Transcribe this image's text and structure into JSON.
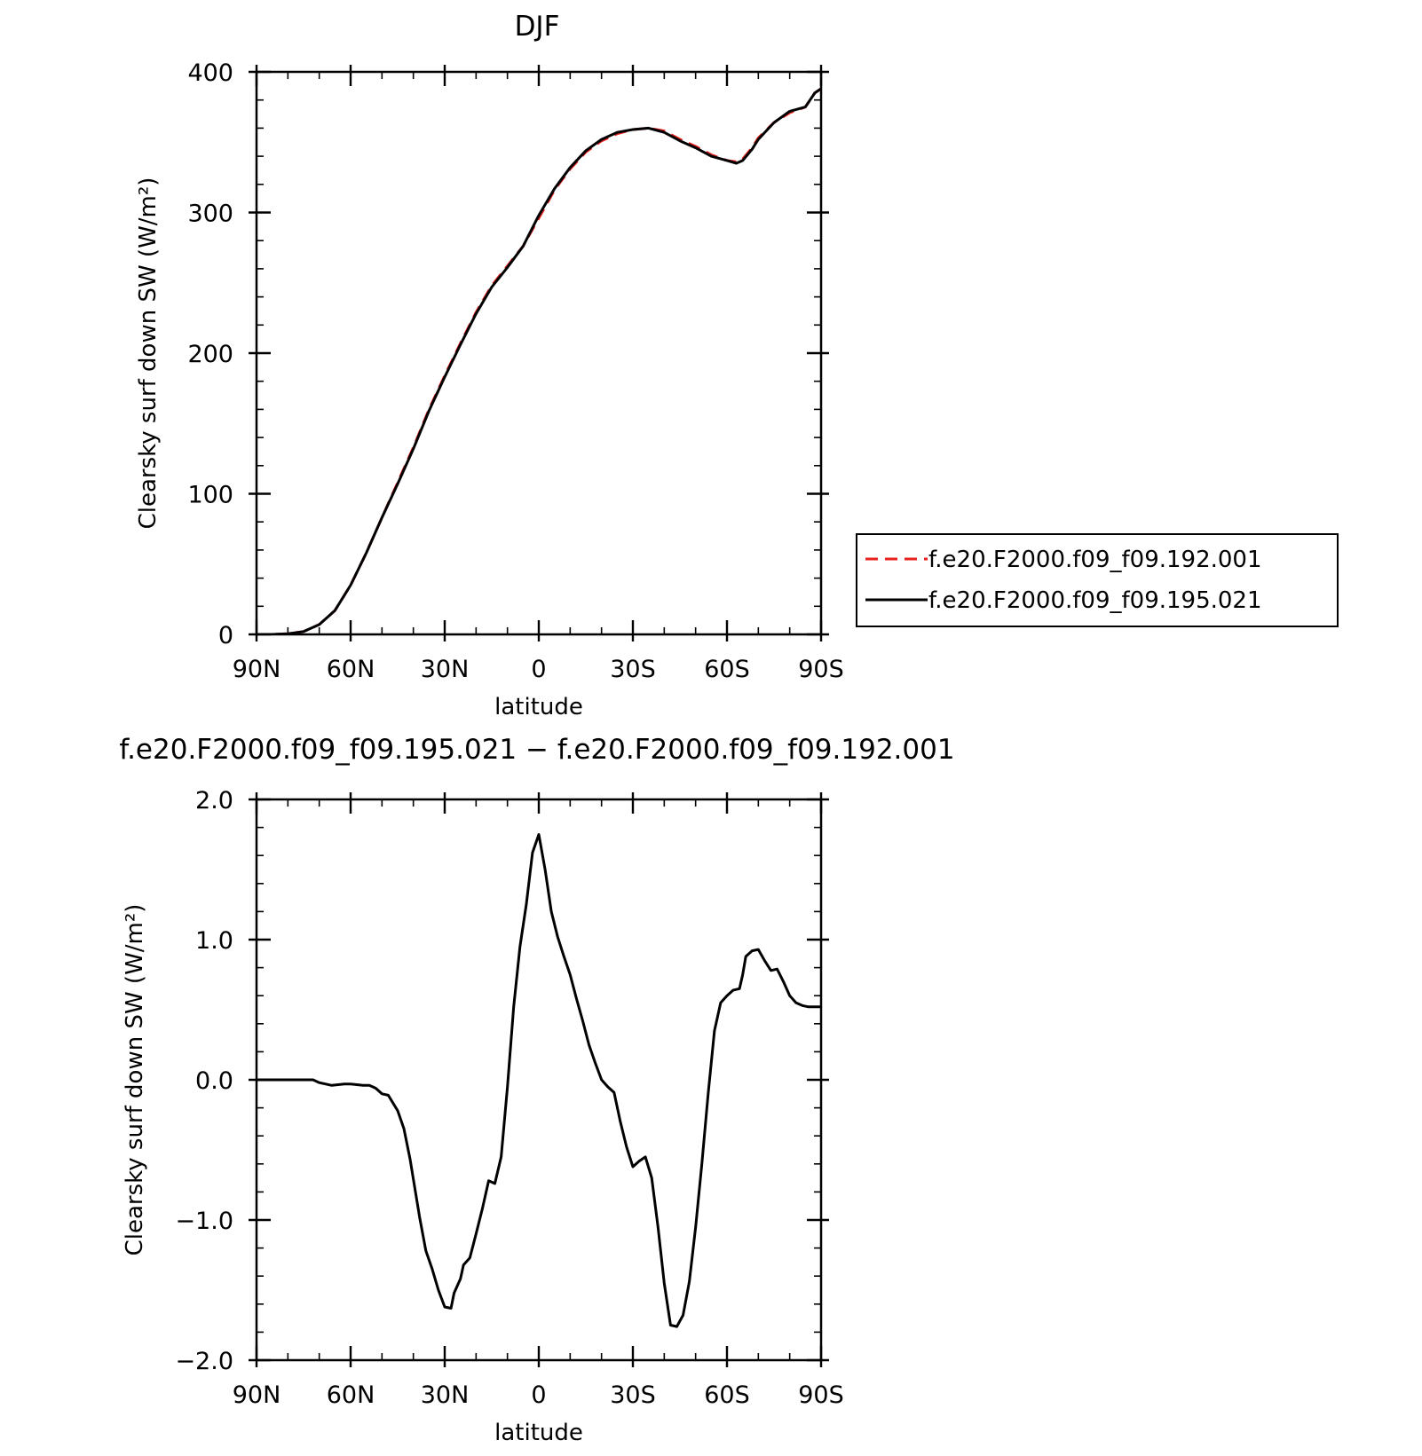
{
  "chart_data": [
    {
      "type": "line",
      "title": "DJF",
      "xlabel": "latitude",
      "ylabel": "Clearsky surf down SW (W/m²)",
      "xlim": [
        90,
        -90
      ],
      "ylim": [
        0,
        400
      ],
      "x_ticks": [
        {
          "value": 90,
          "label": "90N"
        },
        {
          "value": 60,
          "label": "60N"
        },
        {
          "value": 30,
          "label": "30N"
        },
        {
          "value": 0,
          "label": "0"
        },
        {
          "value": -30,
          "label": "30S"
        },
        {
          "value": -60,
          "label": "60S"
        },
        {
          "value": -90,
          "label": "90S"
        }
      ],
      "y_ticks": [
        {
          "value": 0,
          "label": "0"
        },
        {
          "value": 100,
          "label": "100"
        },
        {
          "value": 200,
          "label": "200"
        },
        {
          "value": 300,
          "label": "300"
        },
        {
          "value": 400,
          "label": "400"
        }
      ],
      "legend": "right",
      "series": [
        {
          "name": "f.e20.F2000.f09_f09.192.001",
          "color": "#e8201c",
          "dash": "dashed",
          "x": [
            90,
            85,
            80,
            75,
            70,
            65,
            60,
            55,
            50,
            45,
            40,
            35,
            30,
            25,
            20,
            15,
            10,
            5,
            0,
            -5,
            -10,
            -15,
            -20,
            -25,
            -30,
            -35,
            -40,
            -45,
            -50,
            -55,
            -60,
            -63,
            -65,
            -68,
            -70,
            -75,
            -80,
            -85,
            -88,
            -90
          ],
          "y": [
            0,
            0,
            0.5,
            2,
            7,
            17,
            35,
            58,
            83,
            108,
            133,
            160,
            184,
            207,
            229,
            248,
            262,
            276,
            296,
            316,
            331,
            343,
            351,
            356,
            359,
            360,
            358,
            352,
            347,
            341,
            337,
            336,
            338,
            346,
            353,
            364,
            371,
            375,
            385,
            388
          ]
        },
        {
          "name": "f.e20.F2000.f09_f09.195.021",
          "color": "#000000",
          "dash": "solid",
          "x": [
            90,
            85,
            80,
            75,
            70,
            65,
            60,
            55,
            50,
            45,
            40,
            35,
            30,
            25,
            20,
            15,
            10,
            5,
            0,
            -5,
            -10,
            -15,
            -20,
            -25,
            -30,
            -35,
            -40,
            -45,
            -50,
            -55,
            -60,
            -63,
            -65,
            -68,
            -70,
            -75,
            -80,
            -85,
            -88,
            -90
          ],
          "y": [
            0,
            0,
            0.5,
            2,
            7,
            17,
            35,
            58,
            83,
            107,
            132,
            159,
            183,
            206,
            228,
            247,
            261,
            276,
            298,
            317,
            332,
            344,
            352,
            357,
            359,
            360,
            357,
            351,
            346,
            340,
            337,
            335,
            337,
            345,
            352,
            364,
            372,
            375,
            385,
            388
          ]
        }
      ]
    },
    {
      "type": "line",
      "title": "f.e20.F2000.f09_f09.195.021 − f.e20.F2000.f09_f09.192.001",
      "xlabel": "latitude",
      "ylabel": "Clearsky surf down SW (W/m²)",
      "xlim": [
        90,
        -90
      ],
      "ylim": [
        -2.0,
        2.0
      ],
      "x_ticks": [
        {
          "value": 90,
          "label": "90N"
        },
        {
          "value": 60,
          "label": "60N"
        },
        {
          "value": 30,
          "label": "30N"
        },
        {
          "value": 0,
          "label": "0"
        },
        {
          "value": -30,
          "label": "30S"
        },
        {
          "value": -60,
          "label": "60S"
        },
        {
          "value": -90,
          "label": "90S"
        }
      ],
      "y_ticks": [
        {
          "value": -2.0,
          "label": "−2.0"
        },
        {
          "value": -1.0,
          "label": "−1.0"
        },
        {
          "value": 0.0,
          "label": "0.0"
        },
        {
          "value": 1.0,
          "label": "1.0"
        },
        {
          "value": 2.0,
          "label": "2.0"
        }
      ],
      "series": [
        {
          "color": "#000000",
          "dash": "solid",
          "x": [
            90,
            85,
            80,
            76,
            72,
            70,
            66,
            62,
            60,
            56,
            54,
            52,
            50,
            48,
            45,
            43,
            41,
            38,
            36,
            34,
            32,
            30,
            28,
            27,
            25,
            24,
            22,
            20,
            18,
            16,
            14,
            12,
            10,
            8,
            6,
            4,
            2,
            0,
            -2,
            -4,
            -6,
            -8,
            -10,
            -12,
            -14,
            -16,
            -18,
            -20,
            -22,
            -24,
            -26,
            -28,
            -30,
            -32,
            -34,
            -36,
            -38,
            -40,
            -42,
            -44,
            -46,
            -48,
            -50,
            -52,
            -54,
            -56,
            -58,
            -60,
            -62,
            -64,
            -65,
            -66,
            -68,
            -70,
            -72,
            -74,
            -76,
            -78,
            -80,
            -82,
            -84,
            -86,
            -88,
            -90
          ],
          "y": [
            0,
            0,
            0,
            0,
            0,
            -0.02,
            -0.04,
            -0.03,
            -0.03,
            -0.04,
            -0.04,
            -0.06,
            -0.1,
            -0.11,
            -0.22,
            -0.35,
            -0.57,
            -0.98,
            -1.22,
            -1.35,
            -1.5,
            -1.62,
            -1.63,
            -1.52,
            -1.42,
            -1.32,
            -1.27,
            -1.1,
            -0.92,
            -0.72,
            -0.74,
            -0.55,
            -0.05,
            0.52,
            0.95,
            1.25,
            1.62,
            1.75,
            1.5,
            1.2,
            1.02,
            0.88,
            0.75,
            0.58,
            0.42,
            0.25,
            0.12,
            0,
            -0.05,
            -0.09,
            -0.3,
            -0.48,
            -0.62,
            -0.58,
            -0.55,
            -0.7,
            -1.05,
            -1.45,
            -1.75,
            -1.76,
            -1.68,
            -1.44,
            -1.05,
            -0.6,
            -0.1,
            0.35,
            0.55,
            0.6,
            0.64,
            0.65,
            0.75,
            0.88,
            0.92,
            0.93,
            0.85,
            0.78,
            0.79,
            0.7,
            0.6,
            0.55,
            0.53,
            0.52,
            0.52,
            0.52
          ]
        }
      ]
    }
  ]
}
